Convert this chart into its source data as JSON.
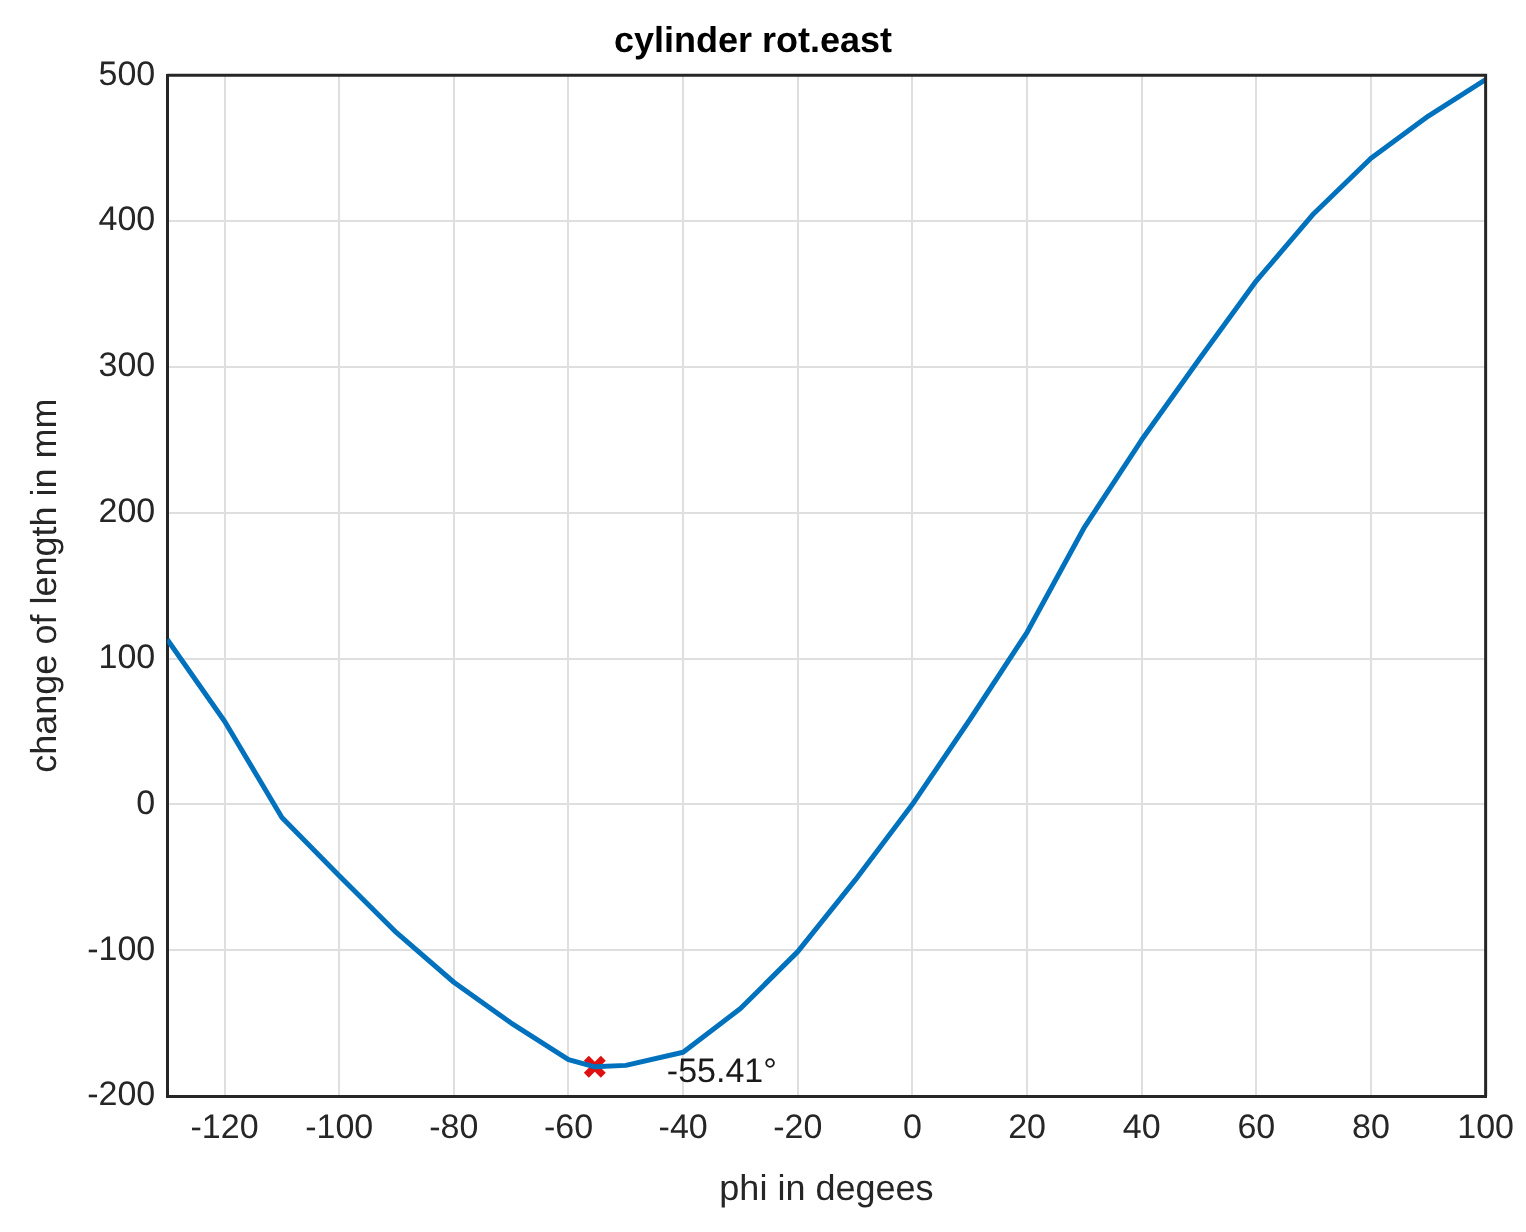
{
  "chart_data": {
    "type": "line",
    "title": "cylinder rot.east",
    "xlabel": "phi in degees",
    "ylabel": "change of length in mm",
    "xlim": [
      -130,
      100
    ],
    "xticks": [
      -120,
      -100,
      -80,
      -60,
      -40,
      -20,
      0,
      20,
      40,
      60,
      80,
      100
    ],
    "ylim": [
      -200,
      500
    ],
    "yticks": [
      -200,
      -100,
      0,
      100,
      200,
      300,
      400,
      500
    ],
    "grid": true,
    "legend": false,
    "marker": "none",
    "line_style": "solid",
    "series": [
      {
        "type": "line",
        "color": "#0072bd",
        "x": [
          -130,
          -120,
          -110,
          -100,
          -90,
          -80,
          -70,
          -60,
          -55.41,
          -50,
          -40,
          -30,
          -20,
          -10,
          0,
          10,
          20,
          30,
          40,
          50,
          60,
          70,
          80,
          90,
          100
        ],
        "values": [
          113,
          57,
          -9,
          -49,
          -88,
          -122,
          -150,
          -175,
          -180,
          -179,
          -170,
          -140,
          -101,
          -52,
          0,
          58,
          118,
          190,
          250,
          305,
          359,
          405,
          443,
          472,
          497
        ]
      },
      {
        "type": "scatter",
        "color": "#e01010",
        "marker": "cross",
        "x": [
          -55.41
        ],
        "values": [
          -180
        ]
      }
    ],
    "annotations": [
      {
        "text": "-55.41°",
        "x": -55.41,
        "y": -180
      }
    ]
  }
}
